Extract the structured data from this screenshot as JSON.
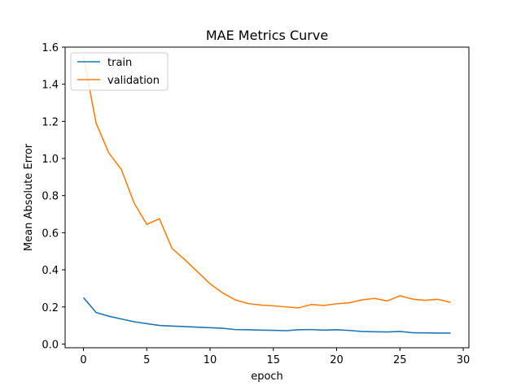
{
  "chart_data": {
    "type": "line",
    "title": "MAE Metrics Curve",
    "xlabel": "epoch",
    "ylabel": "Mean Absolute Error",
    "xlim": [
      -1.45,
      30.45
    ],
    "ylim": [
      -0.02,
      1.6
    ],
    "xticks": [
      0,
      5,
      10,
      15,
      20,
      25,
      30
    ],
    "yticks": [
      0.0,
      0.2,
      0.4,
      0.6,
      0.8,
      1.0,
      1.2,
      1.4,
      1.6
    ],
    "xtick_labels": [
      "0",
      "5",
      "10",
      "15",
      "20",
      "25",
      "30"
    ],
    "ytick_labels": [
      "0.0",
      "0.2",
      "0.4",
      "0.6",
      "0.8",
      "1.0",
      "1.2",
      "1.4",
      "1.6"
    ],
    "grid": false,
    "legend_position": "upper-left",
    "x": [
      0,
      1,
      2,
      3,
      4,
      5,
      6,
      7,
      8,
      9,
      10,
      11,
      12,
      13,
      14,
      15,
      16,
      17,
      18,
      19,
      20,
      21,
      22,
      23,
      24,
      25,
      26,
      27,
      28,
      29
    ],
    "series": [
      {
        "name": "train",
        "color": "#1f77b4",
        "values": [
          0.25,
          0.17,
          0.15,
          0.135,
          0.12,
          0.11,
          0.1,
          0.097,
          0.094,
          0.091,
          0.088,
          0.085,
          0.078,
          0.077,
          0.075,
          0.074,
          0.072,
          0.077,
          0.078,
          0.075,
          0.077,
          0.073,
          0.068,
          0.066,
          0.065,
          0.068,
          0.061,
          0.06,
          0.059,
          0.059
        ]
      },
      {
        "name": "validation",
        "color": "#ff7f0e",
        "values": [
          1.55,
          1.19,
          1.03,
          0.94,
          0.76,
          0.645,
          0.675,
          0.515,
          0.455,
          0.39,
          0.325,
          0.275,
          0.238,
          0.218,
          0.21,
          0.206,
          0.2,
          0.195,
          0.213,
          0.208,
          0.217,
          0.222,
          0.238,
          0.246,
          0.232,
          0.26,
          0.242,
          0.236,
          0.241,
          0.225
        ]
      }
    ]
  }
}
